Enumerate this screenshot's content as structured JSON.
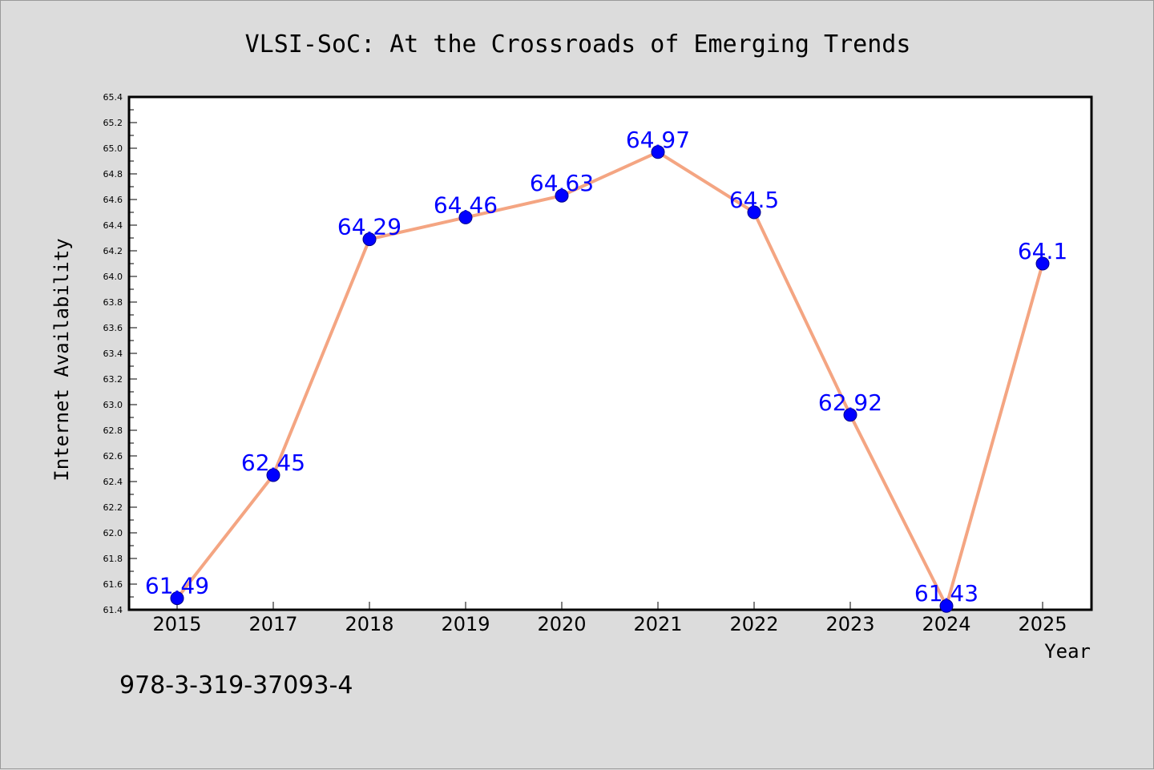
{
  "chart_data": {
    "type": "line",
    "title": "VLSI-SoC: At the Crossroads of Emerging Trends",
    "xlabel": "Year",
    "ylabel": "Internet Availability",
    "categories": [
      "2015",
      "2017",
      "2018",
      "2019",
      "2020",
      "2021",
      "2022",
      "2023",
      "2024",
      "2025"
    ],
    "series": [
      {
        "values": [
          61.49,
          62.45,
          64.29,
          64.46,
          64.63,
          64.97,
          64.5,
          62.92,
          61.43,
          64.1
        ]
      }
    ],
    "data_labels": [
      "61.49",
      "62.45",
      "64.29",
      "64.46",
      "64.63",
      "64.97",
      "64.5",
      "62.92",
      "61.43",
      "64.1"
    ],
    "ylim": [
      61.4,
      65.4
    ],
    "y_ticks": [
      "61.4",
      "61.6",
      "61.8",
      "62.0",
      "62.2",
      "62.4",
      "62.6",
      "62.8",
      "63.0",
      "63.2",
      "63.4",
      "63.6",
      "63.8",
      "64.0",
      "64.2",
      "64.4",
      "64.6",
      "64.8",
      "65.0",
      "65.2",
      "65.4"
    ],
    "grid": false,
    "colors": {
      "line": "#f4a582",
      "marker": "#0000ff",
      "label": "#0000ff",
      "background": "#dcdcdc",
      "plot_area": "#ffffff"
    }
  },
  "annotation": "978-3-319-37093-4"
}
